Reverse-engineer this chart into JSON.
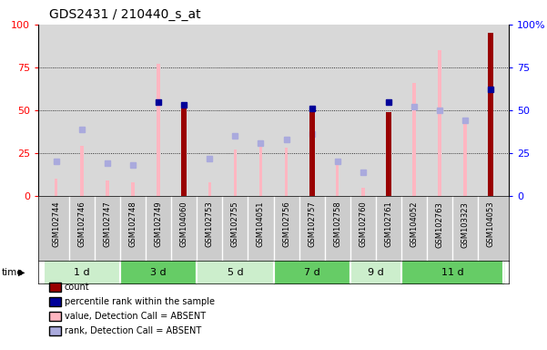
{
  "title": "GDS2431 / 210440_s_at",
  "samples": [
    "GSM102744",
    "GSM102746",
    "GSM102747",
    "GSM102748",
    "GSM102749",
    "GSM104060",
    "GSM102753",
    "GSM102755",
    "GSM104051",
    "GSM102756",
    "GSM102757",
    "GSM102758",
    "GSM102760",
    "GSM102761",
    "GSM104052",
    "GSM102763",
    "GSM103323",
    "GSM104053"
  ],
  "time_groups": [
    {
      "label": "1 d",
      "start": 0,
      "end": 3,
      "color": "#cceecc"
    },
    {
      "label": "3 d",
      "start": 3,
      "end": 6,
      "color": "#66cc66"
    },
    {
      "label": "5 d",
      "start": 6,
      "end": 9,
      "color": "#cceecc"
    },
    {
      "label": "7 d",
      "start": 9,
      "end": 12,
      "color": "#66cc66"
    },
    {
      "label": "9 d",
      "start": 12,
      "end": 14,
      "color": "#cceecc"
    },
    {
      "label": "11 d",
      "start": 14,
      "end": 18,
      "color": "#66cc66"
    }
  ],
  "count_values": [
    0,
    0,
    0,
    0,
    0,
    51,
    0,
    0,
    0,
    0,
    52,
    0,
    0,
    49,
    0,
    0,
    0,
    95
  ],
  "percentile_rank_values": [
    0,
    0,
    0,
    0,
    55,
    53,
    0,
    0,
    0,
    0,
    51,
    0,
    0,
    55,
    0,
    0,
    0,
    62
  ],
  "value_absent_values": [
    10,
    29,
    9,
    8,
    77,
    0,
    8,
    27,
    30,
    28,
    0,
    22,
    5,
    0,
    66,
    85,
    45,
    0
  ],
  "rank_absent_values": [
    20,
    39,
    19,
    18,
    0,
    0,
    22,
    35,
    31,
    33,
    36,
    20,
    14,
    0,
    52,
    50,
    44,
    0
  ],
  "colors": {
    "count": "#990000",
    "percentile_rank": "#000099",
    "value_absent": "#FFB6C1",
    "rank_absent": "#aaaadd",
    "bg_plot": "#d8d8d8",
    "bg_labels": "#cccccc"
  }
}
